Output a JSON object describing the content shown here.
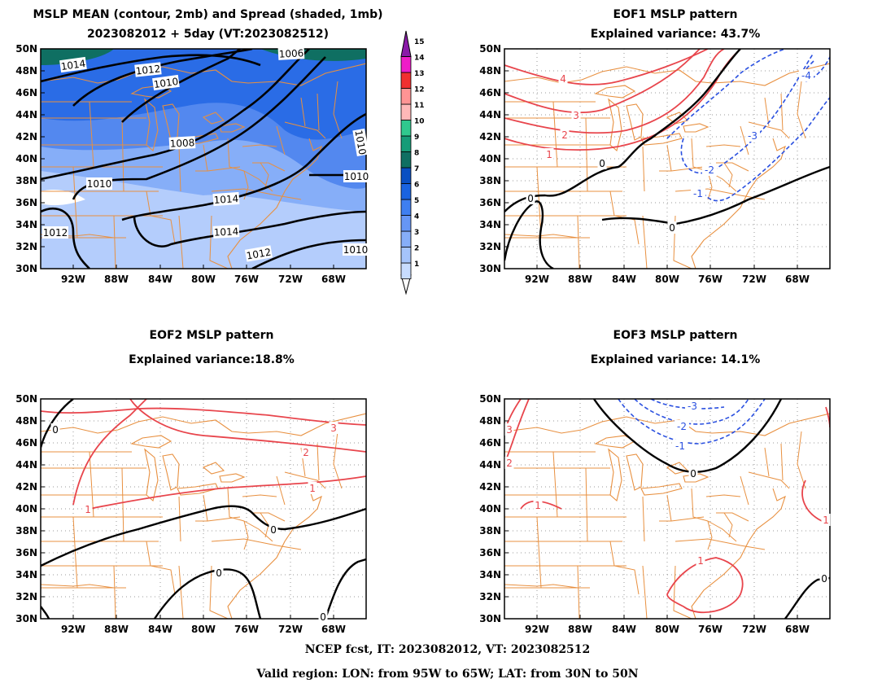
{
  "titles": {
    "p1_line1": "MSLP MEAN (contour, 2mb) and Spread (shaded, 1mb)",
    "p1_line2": "2023082012 + 5day (VT:2023082512)",
    "p2_line1": "EOF1 MSLP pattern",
    "p2_line2": "Explained variance: 43.7%",
    "p3_line1": "EOF2 MSLP pattern",
    "p3_line2": "Explained variance:18.8%",
    "p4_line1": "EOF3 MSLP pattern",
    "p4_line2": "Explained variance: 14.1%"
  },
  "footer": {
    "line1": "NCEP fcst, IT: 2023082012, VT: 2023082512",
    "line2": "Valid region: LON: from 95W to 65W; LAT: from 30N to 50N"
  },
  "axes": {
    "lat_labels": [
      "50N",
      "48N",
      "46N",
      "44N",
      "42N",
      "40N",
      "38N",
      "36N",
      "34N",
      "32N",
      "30N"
    ],
    "lon_labels": [
      "92W",
      "88W",
      "84W",
      "80W",
      "76W",
      "72W",
      "68W"
    ]
  },
  "colorbar": {
    "labels": [
      "1",
      "2",
      "3",
      "4",
      "5",
      "6",
      "7",
      "8",
      "9",
      "10",
      "11",
      "12",
      "13",
      "14",
      "15"
    ],
    "colors": [
      "#c7dcff",
      "#a5c4fb",
      "#86aef8",
      "#6696f5",
      "#3f7ff0",
      "#1a63e0",
      "#0a4fc2",
      "#0f6f62",
      "#169c78",
      "#30c98e",
      "#ffb8b8",
      "#ff9494",
      "#f13030",
      "#ee1cc8",
      "#8a1aa8"
    ]
  },
  "map_colors": {
    "spread_1": "#b4cdfc",
    "spread_2": "#86aef8",
    "spread_3": "#5388ef",
    "spread_4": "#2a6ce6",
    "spread_5": "#0f6f62",
    "boundary": "#e89040",
    "positive": "#e8454c",
    "negative": "#2a50e0",
    "zero": "#000000"
  },
  "labels": {
    "mean": [
      "1014",
      "1012",
      "1010",
      "1006",
      "1008",
      "1010",
      "1014",
      "1014",
      "1012",
      "1012",
      "1010",
      "1010",
      "1010"
    ],
    "eof1": [
      "4",
      "3",
      "2",
      "1",
      "0",
      "0",
      "0",
      "-4",
      "-3",
      "-2",
      "-1"
    ],
    "eof2": [
      "3",
      "2",
      "1",
      "1",
      "0",
      "0",
      "0",
      "0"
    ],
    "eof3": [
      "-3",
      "-2",
      "-1",
      "0",
      "3",
      "2",
      "1",
      "1",
      "1",
      "0"
    ]
  }
}
